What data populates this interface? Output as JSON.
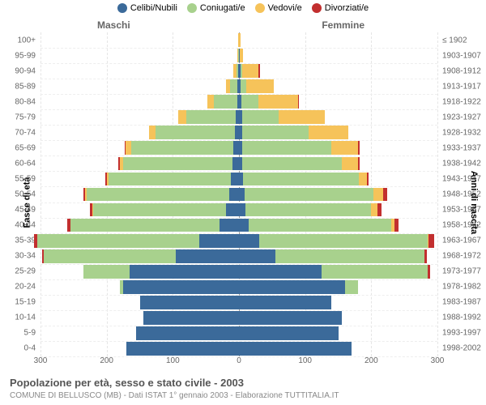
{
  "legend_items": [
    {
      "label": "Celibi/Nubili",
      "color": "#3b6a9a"
    },
    {
      "label": "Coniugati/e",
      "color": "#a8d18d"
    },
    {
      "label": "Vedovi/e",
      "color": "#f6c35a"
    },
    {
      "label": "Divorziati/e",
      "color": "#c22f2f"
    }
  ],
  "gender_left_label": "Maschi",
  "gender_right_label": "Femmine",
  "axis_left_title": "Fasce di età",
  "axis_right_title": "Anni di nascita",
  "title": "Popolazione per età, sesso e stato civile - 2003",
  "subtitle": "COMUNE DI BELLUSCO (MB) - Dati ISTAT 1° gennaio 2003 - Elaborazione TUTTITALIA.IT",
  "chart": {
    "xlim": 300,
    "xticks": [
      300,
      200,
      100,
      0,
      100,
      200,
      300
    ],
    "grid_values": [
      300,
      200,
      100,
      0,
      100,
      200,
      300
    ],
    "bar_gap": 0.12,
    "age_bands": [
      {
        "age": "0-4",
        "birth": "1998-2002",
        "m": {
          "s": 170,
          "c": 0,
          "w": 0,
          "d": 0
        },
        "f": {
          "s": 170,
          "c": 0,
          "w": 0,
          "d": 0
        }
      },
      {
        "age": "5-9",
        "birth": "1993-1997",
        "m": {
          "s": 155,
          "c": 0,
          "w": 0,
          "d": 0
        },
        "f": {
          "s": 150,
          "c": 0,
          "w": 0,
          "d": 0
        }
      },
      {
        "age": "10-14",
        "birth": "1988-1992",
        "m": {
          "s": 145,
          "c": 0,
          "w": 0,
          "d": 0
        },
        "f": {
          "s": 155,
          "c": 0,
          "w": 0,
          "d": 0
        }
      },
      {
        "age": "15-19",
        "birth": "1983-1987",
        "m": {
          "s": 150,
          "c": 0,
          "w": 0,
          "d": 0
        },
        "f": {
          "s": 140,
          "c": 0,
          "w": 0,
          "d": 0
        }
      },
      {
        "age": "20-24",
        "birth": "1978-1982",
        "m": {
          "s": 175,
          "c": 5,
          "w": 0,
          "d": 0
        },
        "f": {
          "s": 160,
          "c": 20,
          "w": 0,
          "d": 0
        }
      },
      {
        "age": "25-29",
        "birth": "1973-1977",
        "m": {
          "s": 165,
          "c": 70,
          "w": 0,
          "d": 0
        },
        "f": {
          "s": 125,
          "c": 160,
          "w": 0,
          "d": 4
        }
      },
      {
        "age": "30-34",
        "birth": "1968-1972",
        "m": {
          "s": 95,
          "c": 200,
          "w": 0,
          "d": 3
        },
        "f": {
          "s": 55,
          "c": 225,
          "w": 0,
          "d": 4
        }
      },
      {
        "age": "35-39",
        "birth": "1963-1967",
        "m": {
          "s": 60,
          "c": 245,
          "w": 0,
          "d": 5
        },
        "f": {
          "s": 30,
          "c": 255,
          "w": 2,
          "d": 8
        }
      },
      {
        "age": "40-44",
        "birth": "1958-1962",
        "m": {
          "s": 30,
          "c": 225,
          "w": 0,
          "d": 5
        },
        "f": {
          "s": 15,
          "c": 215,
          "w": 5,
          "d": 6
        }
      },
      {
        "age": "45-49",
        "birth": "1953-1957",
        "m": {
          "s": 20,
          "c": 200,
          "w": 2,
          "d": 3
        },
        "f": {
          "s": 10,
          "c": 190,
          "w": 10,
          "d": 6
        }
      },
      {
        "age": "50-54",
        "birth": "1948-1952",
        "m": {
          "s": 15,
          "c": 215,
          "w": 3,
          "d": 2
        },
        "f": {
          "s": 8,
          "c": 195,
          "w": 15,
          "d": 6
        }
      },
      {
        "age": "55-59",
        "birth": "1943-1947",
        "m": {
          "s": 12,
          "c": 185,
          "w": 3,
          "d": 2
        },
        "f": {
          "s": 6,
          "c": 175,
          "w": 12,
          "d": 3
        }
      },
      {
        "age": "60-64",
        "birth": "1938-1942",
        "m": {
          "s": 10,
          "c": 165,
          "w": 5,
          "d": 2
        },
        "f": {
          "s": 5,
          "c": 150,
          "w": 25,
          "d": 3
        }
      },
      {
        "age": "65-69",
        "birth": "1933-1937",
        "m": {
          "s": 8,
          "c": 155,
          "w": 8,
          "d": 2
        },
        "f": {
          "s": 5,
          "c": 135,
          "w": 40,
          "d": 3
        }
      },
      {
        "age": "70-74",
        "birth": "1928-1932",
        "m": {
          "s": 6,
          "c": 120,
          "w": 10,
          "d": 0
        },
        "f": {
          "s": 5,
          "c": 100,
          "w": 60,
          "d": 0
        }
      },
      {
        "age": "75-79",
        "birth": "1923-1927",
        "m": {
          "s": 5,
          "c": 75,
          "w": 12,
          "d": 0
        },
        "f": {
          "s": 5,
          "c": 55,
          "w": 70,
          "d": 0
        }
      },
      {
        "age": "80-84",
        "birth": "1918-1922",
        "m": {
          "s": 3,
          "c": 35,
          "w": 10,
          "d": 0
        },
        "f": {
          "s": 4,
          "c": 25,
          "w": 60,
          "d": 2
        }
      },
      {
        "age": "85-89",
        "birth": "1913-1917",
        "m": {
          "s": 2,
          "c": 12,
          "w": 6,
          "d": 0
        },
        "f": {
          "s": 3,
          "c": 8,
          "w": 42,
          "d": 0
        }
      },
      {
        "age": "90-94",
        "birth": "1908-1912",
        "m": {
          "s": 1,
          "c": 3,
          "w": 4,
          "d": 0
        },
        "f": {
          "s": 2,
          "c": 3,
          "w": 25,
          "d": 2
        }
      },
      {
        "age": "95-99",
        "birth": "1903-1907",
        "m": {
          "s": 0,
          "c": 1,
          "w": 2,
          "d": 0
        },
        "f": {
          "s": 1,
          "c": 0,
          "w": 5,
          "d": 0
        }
      },
      {
        "age": "100+",
        "birth": "≤ 1902",
        "m": {
          "s": 0,
          "c": 0,
          "w": 1,
          "d": 0
        },
        "f": {
          "s": 0,
          "c": 0,
          "w": 2,
          "d": 0
        }
      }
    ],
    "colors": {
      "s": "#3b6a9a",
      "c": "#a8d18d",
      "w": "#f6c35a",
      "d": "#c22f2f"
    }
  }
}
